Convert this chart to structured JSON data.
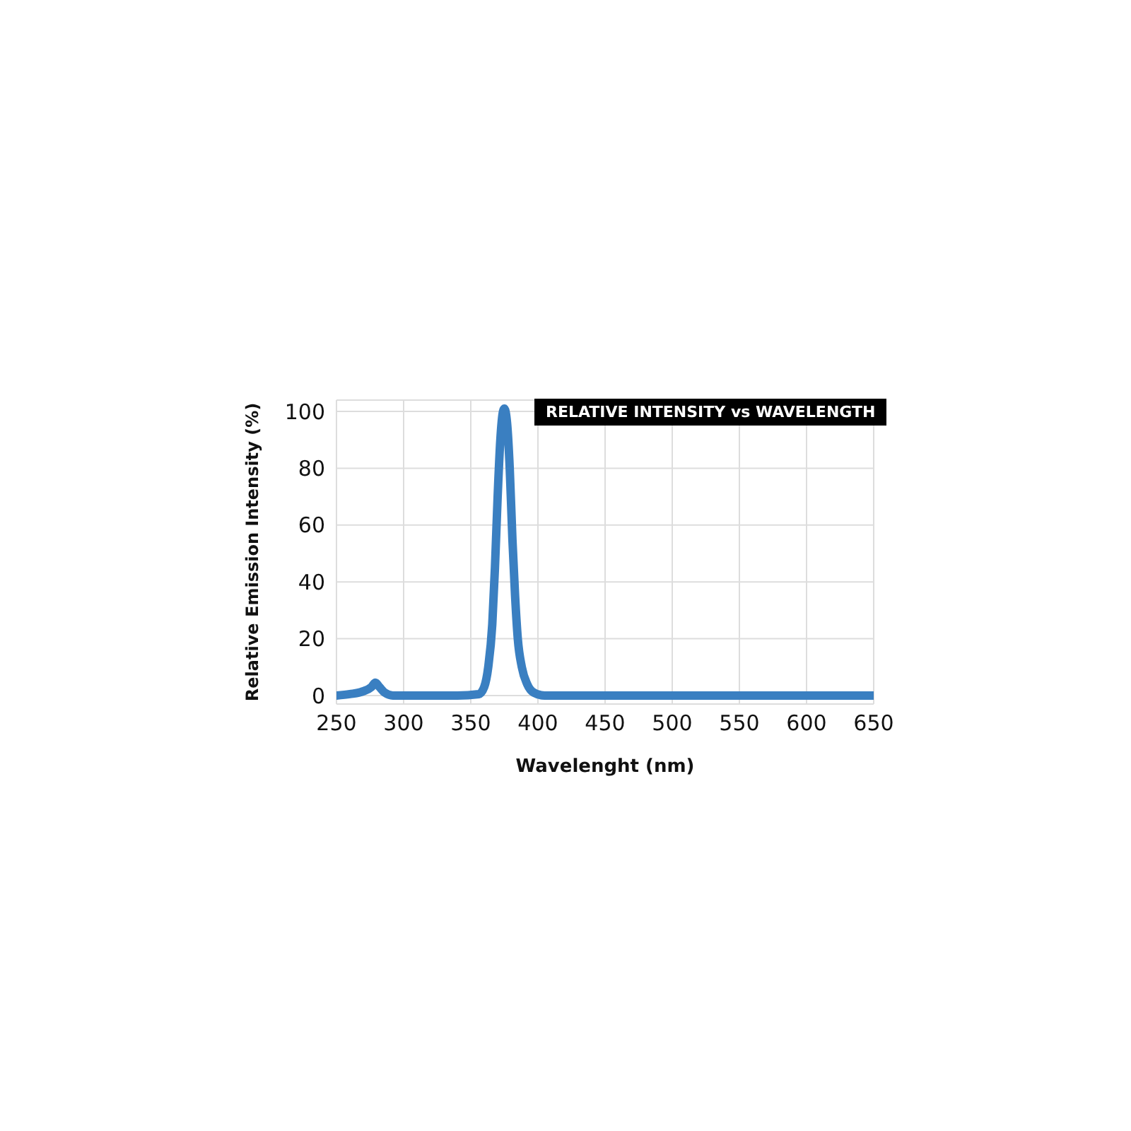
{
  "chart_data": {
    "type": "line",
    "title": "RELATIVE INTENSITY vs WAVELENGTH",
    "xlabel": "Wavelenght (nm)",
    "ylabel": "Relative Emission Intensity (%)",
    "series": [
      {
        "color": "#3a7fc1",
        "x": [
          250,
          260,
          270,
          276,
          279,
          282,
          286,
          292,
          300,
          340,
          356,
          360,
          363,
          366,
          368,
          370,
          372,
          374,
          375,
          377,
          379,
          381,
          383,
          385,
          388,
          392,
          397,
          405,
          450,
          550,
          650
        ],
        "values": [
          0,
          0.5,
          1.5,
          3,
          4.5,
          3,
          1,
          0,
          0,
          0,
          0.5,
          3,
          10,
          25,
          45,
          70,
          90,
          100,
          101,
          96,
          80,
          55,
          35,
          20,
          10,
          4,
          1,
          0,
          0,
          0,
          0
        ]
      }
    ],
    "xlim": [
      250,
      650
    ],
    "xticks": [
      250,
      300,
      350,
      400,
      450,
      500,
      550,
      600,
      650
    ],
    "ylim": [
      -3,
      104
    ],
    "yticks": [
      0,
      20,
      40,
      60,
      80,
      100
    ],
    "grid": true,
    "marker": "none",
    "line_style": "solid"
  }
}
